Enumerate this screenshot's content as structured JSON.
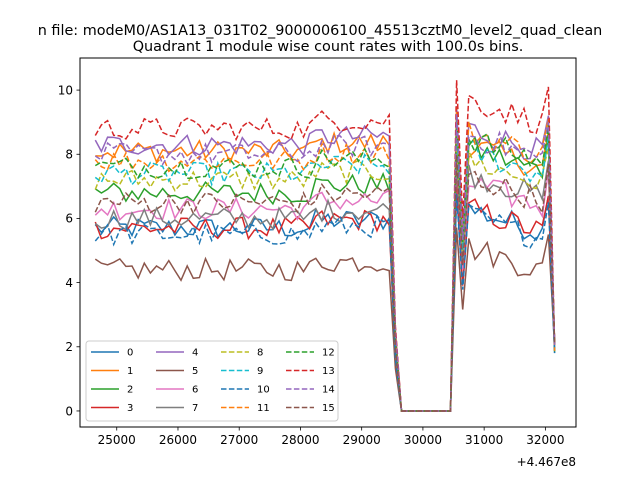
{
  "figure": {
    "suptitle": "n file: modeM0/AS1A13_031T02_9000006100_45513cztM0_level2_quad_clean"
  },
  "chart_data": {
    "type": "line",
    "title": "Quadrant 1 module wise count rates with 100.0s bins.",
    "xlabel": "",
    "ylabel": "",
    "x_offset_label": "+4.467e8",
    "xlim": [
      24400,
      32500
    ],
    "ylim": [
      -0.5,
      11
    ],
    "xticks": [
      "25000",
      "26000",
      "27000",
      "28000",
      "29000",
      "30000",
      "31000",
      "32000"
    ],
    "yticks": [
      "0",
      "2",
      "4",
      "6",
      "8",
      "10"
    ],
    "grid": false,
    "legend": {
      "placement": "lower-left",
      "columns": 4
    },
    "x_start": 24650,
    "x_step": 100,
    "n_points": 76,
    "series": [
      {
        "name": "0",
        "color": "#1f77b4",
        "style": "solid",
        "base": 5.7,
        "after": 6.3
      },
      {
        "name": "1",
        "color": "#ff7f0e",
        "style": "solid",
        "base": 8.1,
        "after": 8.3
      },
      {
        "name": "2",
        "color": "#2ca02c",
        "style": "solid",
        "base": 6.8,
        "after": 8.2
      },
      {
        "name": "3",
        "color": "#d62728",
        "style": "solid",
        "base": 5.7,
        "after": 6.3
      },
      {
        "name": "4",
        "color": "#9467bd",
        "style": "solid",
        "base": 8.3,
        "after": 8.8
      },
      {
        "name": "5",
        "color": "#8c564b",
        "style": "solid",
        "base": 4.4,
        "after": 5.1
      },
      {
        "name": "6",
        "color": "#e377c2",
        "style": "solid",
        "base": 6.3,
        "after": 7.1
      },
      {
        "name": "7",
        "color": "#7f7f7f",
        "style": "solid",
        "base": 6.0,
        "after": 7.4
      },
      {
        "name": "8",
        "color": "#bcbd22",
        "style": "dashed",
        "base": 7.2,
        "after": 7.8
      },
      {
        "name": "9",
        "color": "#17becf",
        "style": "dashed",
        "base": 7.4,
        "after": 8.1
      },
      {
        "name": "10",
        "color": "#1f77b4",
        "style": "dashed",
        "base": 5.5,
        "after": 6.1
      },
      {
        "name": "11",
        "color": "#ff7f0e",
        "style": "dashed",
        "base": 7.8,
        "after": 8.7
      },
      {
        "name": "12",
        "color": "#2ca02c",
        "style": "dashed",
        "base": 7.6,
        "after": 8.5
      },
      {
        "name": "13",
        "color": "#d62728",
        "style": "dashed",
        "base": 8.8,
        "after": 9.7
      },
      {
        "name": "14",
        "color": "#9467bd",
        "style": "dashed",
        "base": 8.0,
        "after": 8.6
      },
      {
        "name": "15",
        "color": "#8c564b",
        "style": "dashed",
        "base": 6.5,
        "after": 7.3
      }
    ]
  }
}
